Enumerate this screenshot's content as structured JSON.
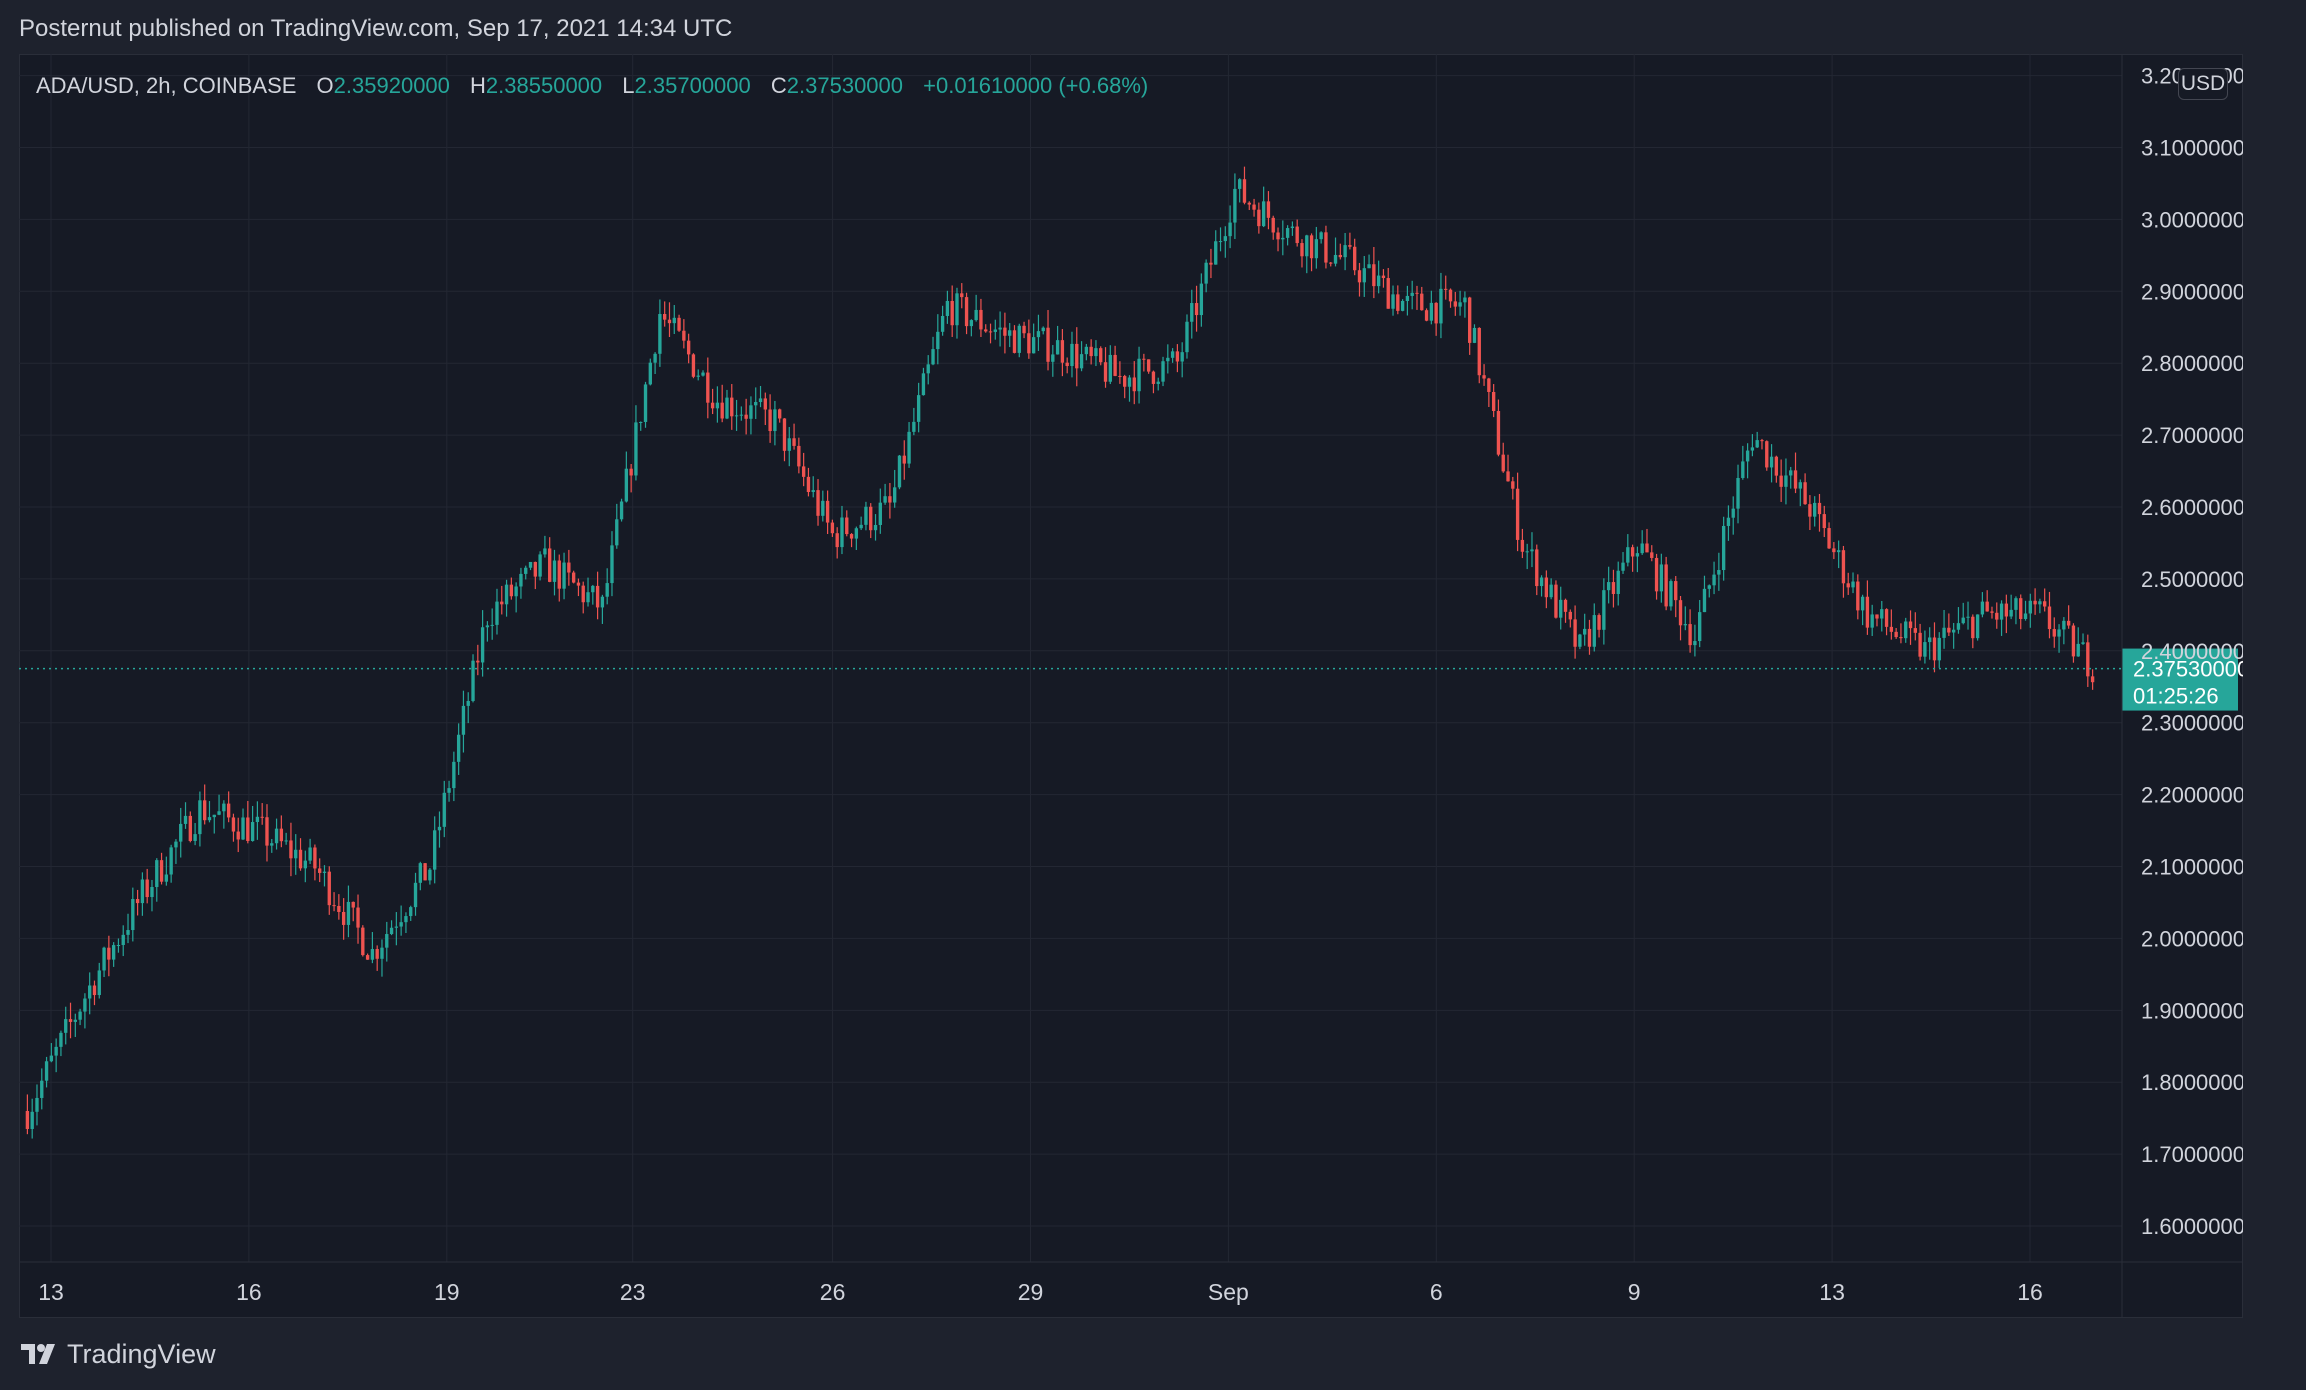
{
  "header": {
    "published_text": "Posternut published on TradingView.com, Sep 17, 2021 14:34 UTC"
  },
  "legend": {
    "symbol": "ADA/USD, 2h, COINBASE",
    "open_label": "O",
    "open": "2.35920000",
    "high_label": "H",
    "high": "2.38550000",
    "low_label": "L",
    "low": "2.35700000",
    "close_label": "C",
    "close": "2.37530000",
    "change": "+0.01610000 (+0.68%)"
  },
  "currency_button": "USD",
  "footer": {
    "brand": "TradingView"
  },
  "colors": {
    "up": "#26a69a",
    "down": "#ef5350",
    "background": "#161a25",
    "grid": "#232733",
    "text": "#d1d4dc"
  },
  "chart_data": {
    "type": "candlestick",
    "ylim": [
      1.55,
      3.23
    ],
    "y_ticks": [
      "3.20000000",
      "3.10000000",
      "3.00000000",
      "2.90000000",
      "2.80000000",
      "2.70000000",
      "2.60000000",
      "2.50000000",
      "2.40000000",
      "2.30000000",
      "2.20000000",
      "2.10000000",
      "2.00000000",
      "1.90000000",
      "1.80000000",
      "1.70000000",
      "1.60000000"
    ],
    "x_ticks": [
      "13",
      "16",
      "19",
      "23",
      "26",
      "29",
      "Sep",
      "6",
      "9",
      "13",
      "16"
    ],
    "last_price": "2.37530000",
    "countdown": "01:25:26",
    "key_points": [
      {
        "x": "Aug 12",
        "price": 1.76
      },
      {
        "x": "Aug 13",
        "price": 1.92
      },
      {
        "x": "Aug 14",
        "price": 2.06
      },
      {
        "x": "Aug 15",
        "price": 2.18
      },
      {
        "x": "Aug 16",
        "price": 2.15
      },
      {
        "x": "Aug 17",
        "price": 2.1
      },
      {
        "x": "Aug 18",
        "price": 1.98
      },
      {
        "x": "Aug 19",
        "price": 2.1
      },
      {
        "x": "Aug 20",
        "price": 2.45
      },
      {
        "x": "Aug 21",
        "price": 2.52
      },
      {
        "x": "Aug 22",
        "price": 2.46
      },
      {
        "x": "Aug 23",
        "price": 2.87
      },
      {
        "x": "Aug 24",
        "price": 2.75
      },
      {
        "x": "Aug 25",
        "price": 2.72
      },
      {
        "x": "Aug 26",
        "price": 2.56
      },
      {
        "x": "Aug 27",
        "price": 2.6
      },
      {
        "x": "Aug 28",
        "price": 2.88
      },
      {
        "x": "Aug 29",
        "price": 2.84
      },
      {
        "x": "Aug 30",
        "price": 2.82
      },
      {
        "x": "Aug 31",
        "price": 2.78
      },
      {
        "x": "Sep 1",
        "price": 2.8
      },
      {
        "x": "Sep 2",
        "price": 3.04
      },
      {
        "x": "Sep 3",
        "price": 2.98
      },
      {
        "x": "Sep 4",
        "price": 2.94
      },
      {
        "x": "Sep 5",
        "price": 2.88
      },
      {
        "x": "Sep 6",
        "price": 2.88
      },
      {
        "x": "Sep 7",
        "price": 2.55
      },
      {
        "x": "Sep 8",
        "price": 2.4
      },
      {
        "x": "Sep 9",
        "price": 2.55
      },
      {
        "x": "Sep 10",
        "price": 2.42
      },
      {
        "x": "Sep 11",
        "price": 2.7
      },
      {
        "x": "Sep 12",
        "price": 2.6
      },
      {
        "x": "Sep 13",
        "price": 2.45
      },
      {
        "x": "Sep 14",
        "price": 2.4
      },
      {
        "x": "Sep 15",
        "price": 2.45
      },
      {
        "x": "Sep 16",
        "price": 2.45
      },
      {
        "x": "Sep 17",
        "price": 2.375
      }
    ]
  }
}
